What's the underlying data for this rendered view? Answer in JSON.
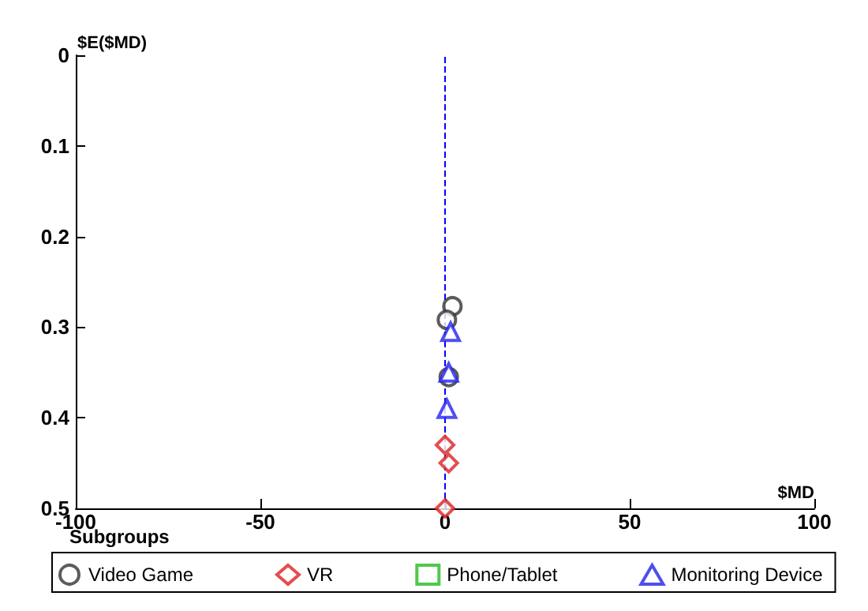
{
  "chart_data": {
    "type": "scatter",
    "xlabel": "$MD",
    "ylabel": "$E($MD)",
    "legend_title": "Subgroups",
    "legend": "bottom",
    "grid": false,
    "xlim": [
      -100,
      100
    ],
    "xticks": [
      -100,
      -50,
      0,
      50,
      100
    ],
    "ylim": [
      0.5,
      0
    ],
    "yticks": [
      0,
      0.1,
      0.2,
      0.3,
      0.4,
      0.5
    ],
    "ref_lines": [
      {
        "axis": "x",
        "value": 0,
        "color": "#0000ff",
        "line_style": "dashed"
      }
    ],
    "series": [
      {
        "name": "Video Game",
        "color": "#333333",
        "marker": "circle",
        "x": [
          2,
          0.5,
          1
        ],
        "values": [
          0.277,
          0.292,
          0.355
        ]
      },
      {
        "name": "VR",
        "color": "#dd2222",
        "marker": "diamond",
        "x": [
          0,
          1,
          0
        ],
        "values": [
          0.43,
          0.45,
          0.5
        ]
      },
      {
        "name": "Phone/Tablet",
        "color": "#22bb22",
        "marker": "square"
      },
      {
        "name": "Monitoring Device",
        "color": "#2222ee",
        "marker": "triangle",
        "x": [
          1.5,
          1,
          0.5
        ],
        "values": [
          0.305,
          0.35,
          0.39
        ]
      }
    ]
  }
}
